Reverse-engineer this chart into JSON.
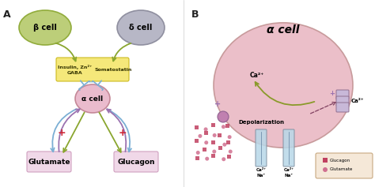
{
  "bg_color": "#ffffff",
  "panel_A_label": "A",
  "panel_B_label": "B",
  "beta_cell_label": "β cell",
  "delta_cell_label": "δ cell",
  "alpha_cell_label_A": "α cell",
  "alpha_cell_label_B": "α cell",
  "insulin_label": "Insulin, Zn²⁺\nGABA",
  "somatostatin_label": "Somatostatin",
  "glutamate_label": "Glutamate",
  "glucagon_label": "Glucagon",
  "depolarization_label": "Depolarization",
  "ca2plus_labels": [
    "Ca²⁺",
    "Ca²⁺",
    "Ca²⁺",
    "Ca²⁺"
  ],
  "na_labels": [
    "Na⁺",
    "Na⁺"
  ],
  "plus_sign": "+",
  "legend_glucagon": "Glucagon",
  "legend_glutamate": "Glutamate",
  "beta_color": "#b5c96a",
  "delta_color": "#b0afc0",
  "alpha_color_A": "#e8b4c8",
  "alpha_color_B": "#e8b4c8",
  "arrow_green": "#8aa62f",
  "arrow_blue": "#7bafd4",
  "arrow_purple": "#9b72b0",
  "arrow_olive": "#8a9a2a",
  "box_yellow": "#f5e87a",
  "box_pink_glut": "#f0d8e8",
  "box_pink_gluc": "#f0d8e8",
  "glucagon_dot_color": "#c04060",
  "glutamate_dot_color": "#d07090",
  "channel_color": "#b8d8e8",
  "plus_color": "#cc2233",
  "text_color": "#222222",
  "label_fontsize": 7,
  "plus_fontsize": 9,
  "title_fontsize": 8
}
